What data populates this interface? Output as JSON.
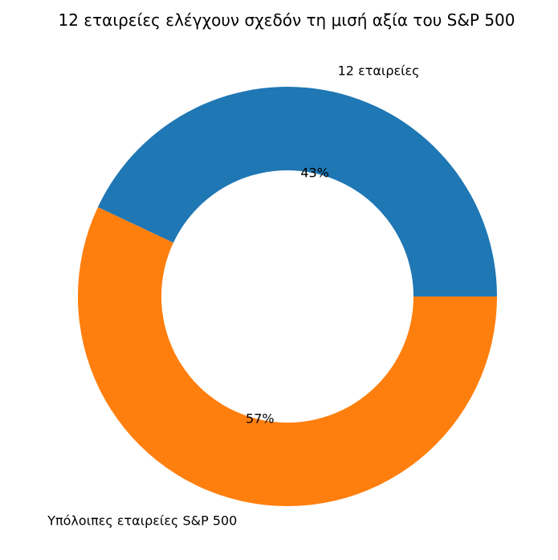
{
  "chart_data": {
    "type": "pie",
    "donut": true,
    "title": "12 εταιρείες ελέγχουν σχεδόν τη μισή αξία του S&P 500",
    "start_angle_deg": 0,
    "direction": "counterclockwise",
    "slices": [
      {
        "label": "12 εταιρείες",
        "value": 43,
        "pct_label": "43%",
        "color": "#1f77b4"
      },
      {
        "label": "Υπόλοιπες εταιρείες S&P 500",
        "value": 57,
        "pct_label": "57%",
        "color": "#ff7f0e"
      }
    ]
  }
}
